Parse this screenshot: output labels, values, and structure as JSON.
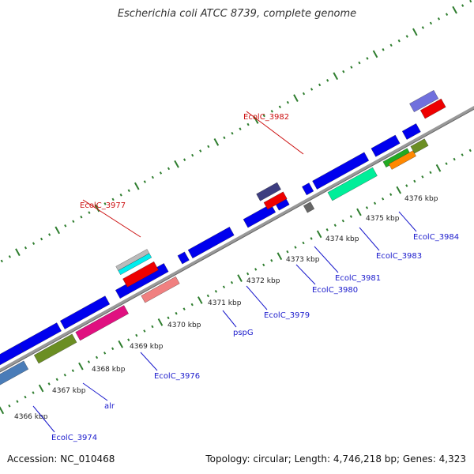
{
  "title": "Escherichia coli ATCC 8739, complete genome",
  "footer": {
    "accession": "Accession: NC_010468",
    "summary": "Topology: circular; Length: 4,746,218 bp; Genes: 4,323"
  },
  "colors": {
    "backbone": "#888888",
    "tick": "#2e7d2e",
    "label_blue": "#1a1acc",
    "label_red": "#cc1111"
  },
  "kbp_labels": [
    "4366 kbp",
    "4367 kbp",
    "4368 kbp",
    "4369 kbp",
    "4370 kbp",
    "4371 kbp",
    "4372 kbp",
    "4373 kbp",
    "4374 kbp",
    "4375 kbp",
    "4376 kbp"
  ],
  "gene_labels": [
    {
      "text": "EcolC_3974",
      "color": "blue"
    },
    {
      "text": "alr",
      "color": "blue"
    },
    {
      "text": "EcolC_3976",
      "color": "blue"
    },
    {
      "text": "EcolC_3977",
      "color": "red"
    },
    {
      "text": "pspG",
      "color": "blue"
    },
    {
      "text": "EcolC_3979",
      "color": "blue"
    },
    {
      "text": "EcolC_3980",
      "color": "blue"
    },
    {
      "text": "EcolC_3981",
      "color": "blue"
    },
    {
      "text": "EcolC_3982",
      "color": "red"
    },
    {
      "text": "EcolC_3983",
      "color": "blue"
    },
    {
      "text": "EcolC_3984",
      "color": "blue"
    }
  ]
}
